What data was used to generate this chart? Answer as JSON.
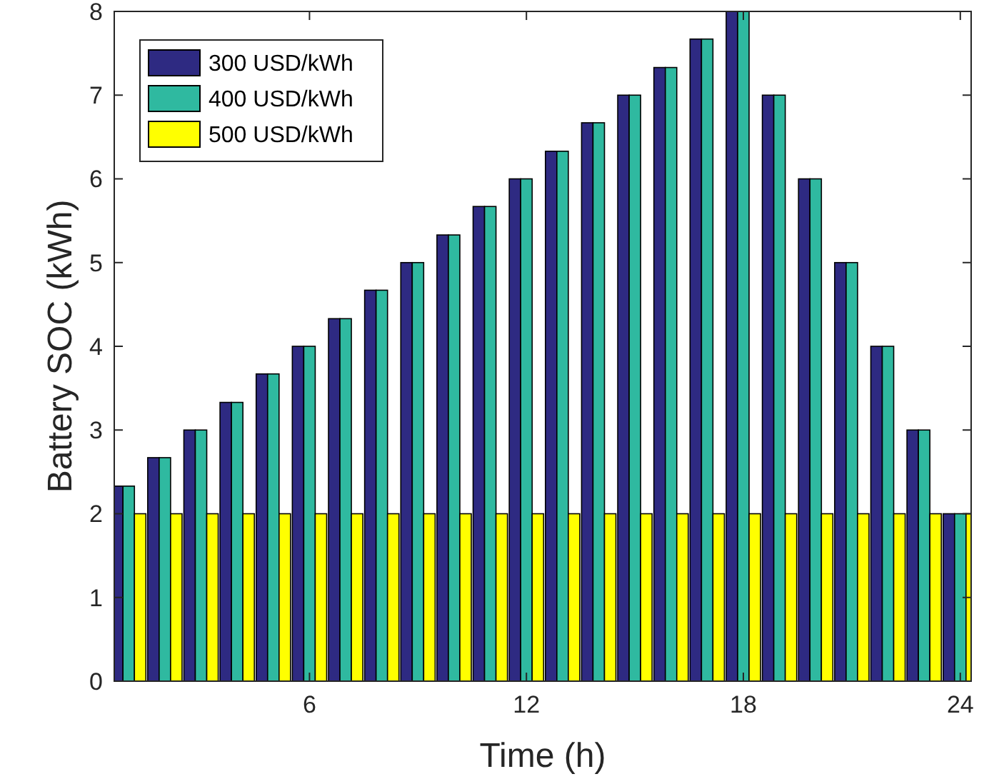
{
  "chart_data": {
    "type": "bar",
    "xlabel": "Time (h)",
    "ylabel": "Battery SOC (kWh)",
    "x": [
      1,
      2,
      3,
      4,
      5,
      6,
      7,
      8,
      9,
      10,
      11,
      12,
      13,
      14,
      15,
      16,
      17,
      18,
      19,
      20,
      21,
      22,
      23,
      24
    ],
    "series": [
      {
        "name": "300 USD/kWh",
        "color": "#2e2a82",
        "values": [
          2.33,
          2.67,
          3,
          3.33,
          3.67,
          4,
          4.33,
          4.67,
          5,
          5.33,
          5.67,
          6,
          6.33,
          6.67,
          7,
          7.33,
          7.67,
          8,
          7,
          6,
          5,
          4,
          3,
          2
        ]
      },
      {
        "name": "400 USD/kWh",
        "color": "#2fb9a0",
        "values": [
          2.33,
          2.67,
          3,
          3.33,
          3.67,
          4,
          4.33,
          4.67,
          5,
          5.33,
          5.67,
          6,
          6.33,
          6.67,
          7,
          7.33,
          7.67,
          8,
          7,
          6,
          5,
          4,
          3,
          2
        ]
      },
      {
        "name": "500 USD/kWh",
        "color": "#ffff00",
        "values": [
          2,
          2,
          2,
          2,
          2,
          2,
          2,
          2,
          2,
          2,
          2,
          2,
          2,
          2,
          2,
          2,
          2,
          2,
          2,
          2,
          2,
          2,
          2,
          2
        ]
      }
    ],
    "xlim": [
      0.6,
      24.3
    ],
    "xticks": [
      6,
      12,
      18,
      24
    ],
    "ylim": [
      0,
      8
    ],
    "yticks": [
      0,
      1,
      2,
      3,
      4,
      5,
      6,
      7,
      8
    ],
    "legend": "top left",
    "grid": false
  }
}
